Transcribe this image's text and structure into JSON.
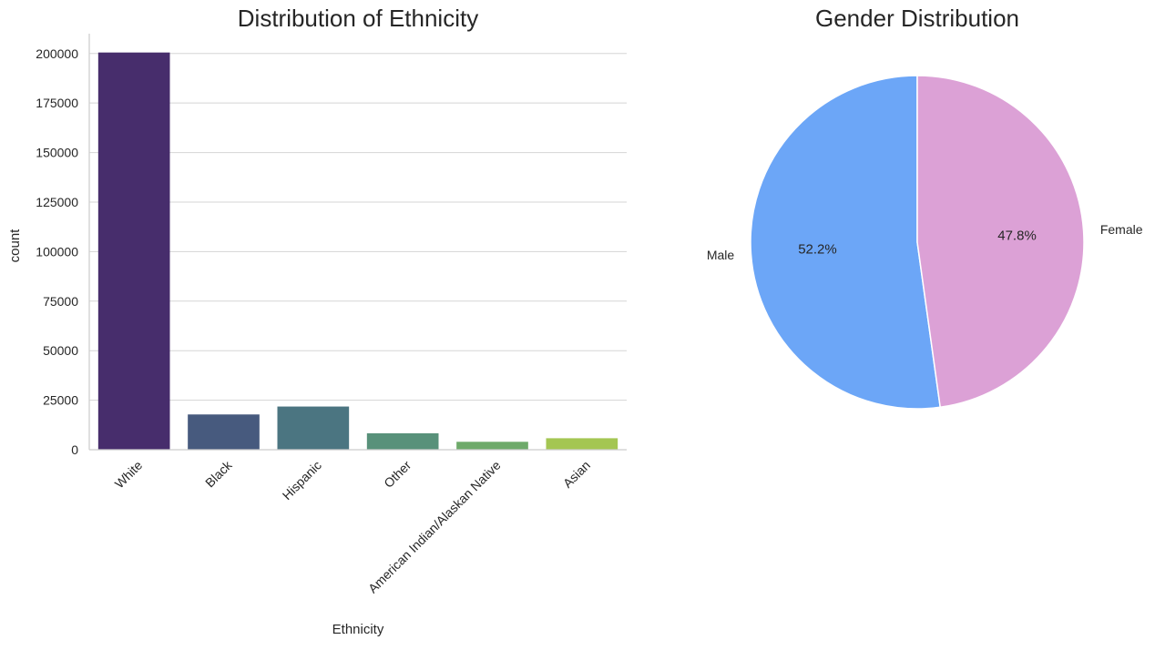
{
  "chart_data": [
    {
      "type": "bar",
      "title": "Distribution of Ethnicity",
      "xlabel": "Ethnicity",
      "ylabel": "count",
      "categories": [
        "White",
        "Black",
        "Hispanic",
        "Other",
        "American Indian/Alaskan Native",
        "Asian"
      ],
      "values": [
        200500,
        17800,
        21800,
        8300,
        4000,
        5800
      ],
      "colors": [
        "#472d6c",
        "#475a7e",
        "#4b7581",
        "#58917a",
        "#6eaa6a",
        "#a4c652"
      ],
      "ylim": [
        0,
        210000
      ],
      "yticks": [
        0,
        25000,
        50000,
        75000,
        100000,
        125000,
        150000,
        175000,
        200000
      ],
      "ytick_labels": [
        "0",
        "25000",
        "50000",
        "75000",
        "100000",
        "125000",
        "150000",
        "175000",
        "200000"
      ],
      "grid": "horizontal"
    },
    {
      "type": "pie",
      "title": "Gender Distribution",
      "labels": [
        "Male",
        "Female"
      ],
      "values": [
        52.2,
        47.8
      ],
      "pct_labels": [
        "52.2%",
        "47.8%"
      ],
      "colors": [
        "#6ca6f7",
        "#dca1d6"
      ],
      "start_angle": 90
    }
  ]
}
